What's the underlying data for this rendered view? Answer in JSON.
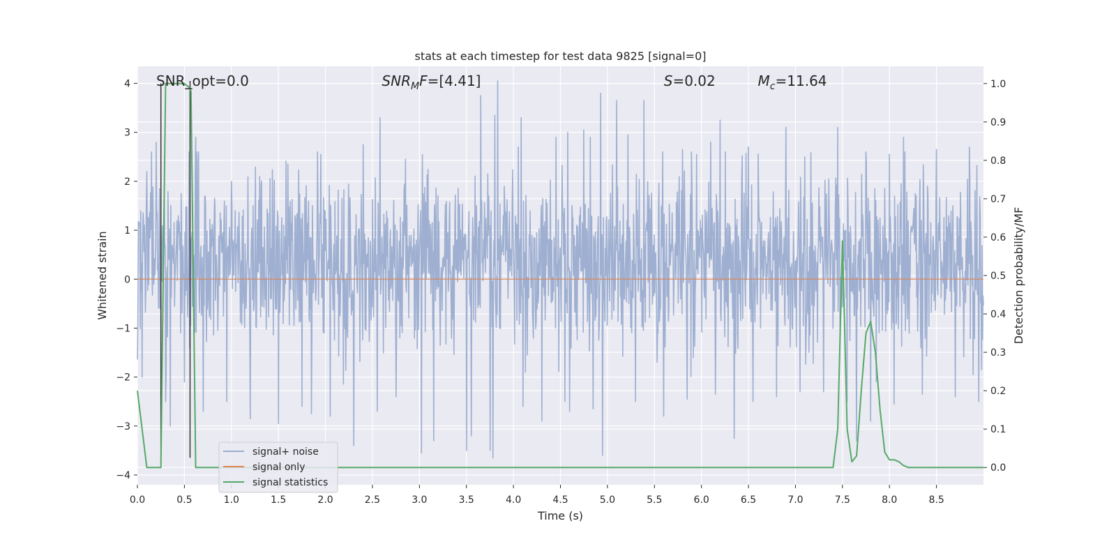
{
  "chart_data": {
    "type": "line",
    "title": "stats at each timestep for test data 9825 [signal=0]",
    "xlabel": "Time (s)",
    "ylabel_left": "Whitened strain",
    "ylabel_right": "Detection probability/MF",
    "xlim": [
      0.0,
      9.0
    ],
    "ylim_left": [
      -4.2,
      4.35
    ],
    "ylim_right": [
      -0.045,
      1.045
    ],
    "x_ticks": [
      0.0,
      0.5,
      1.0,
      1.5,
      2.0,
      2.5,
      3.0,
      3.5,
      4.0,
      4.5,
      5.0,
      5.5,
      6.0,
      6.5,
      7.0,
      7.5,
      8.0,
      8.5
    ],
    "x_tick_labels": [
      "0.0",
      "0.5",
      "1.0",
      "1.5",
      "2.0",
      "2.5",
      "3.0",
      "3.5",
      "4.0",
      "4.5",
      "5.0",
      "5.5",
      "6.0",
      "6.5",
      "7.0",
      "7.5",
      "8.0",
      "8.5"
    ],
    "y_left_ticks": [
      4,
      3,
      2,
      1,
      0,
      -1,
      -2,
      -3,
      -4
    ],
    "y_left_tick_labels": [
      "4",
      "3",
      "2",
      "1",
      "0",
      "−1",
      "−2",
      "−3",
      "−4"
    ],
    "y_right_ticks": [
      1.0,
      0.9,
      0.8,
      0.7,
      0.6,
      0.5,
      0.4,
      0.3,
      0.2,
      0.1,
      0.0
    ],
    "y_right_tick_labels": [
      "1.0",
      "0.9",
      "0.8",
      "0.7",
      "0.6",
      "0.5",
      "0.4",
      "0.3",
      "0.2",
      "0.1",
      "0.0"
    ],
    "grid": true,
    "legend": {
      "placement": "lower-left",
      "entries": [
        {
          "label": "signal+ noise",
          "color": "#9aaccf"
        },
        {
          "label": "signal only",
          "color": "#dd8452"
        },
        {
          "label": "signal statistics",
          "color": "#55a868"
        }
      ]
    },
    "annotations": [
      {
        "base": "SNR_opt=0.0",
        "sub": "",
        "suffix": "",
        "x": 0.2,
        "y": 4.05
      },
      {
        "base": "SNR",
        "sub": "M",
        "suffix": "F=[4.41]",
        "italic": true,
        "x": 2.6,
        "y": 4.05
      },
      {
        "base": "S",
        "sub": "",
        "suffix": "=0.02",
        "italic": true,
        "x": 5.6,
        "y": 4.05
      },
      {
        "base": "M",
        "sub": "c",
        "suffix": "=11.64",
        "italic": true,
        "x": 6.6,
        "y": 4.05
      }
    ],
    "series": [
      {
        "name": "signal+ noise",
        "axis": "left",
        "color": "#9aaccf",
        "style": "dense-noise",
        "t_start": 0.0,
        "t_end": 9.0,
        "samples": 1800,
        "typical_band": [
          -1.0,
          1.7
        ],
        "upper_peaks": [
          [
            0.05,
            2.4
          ],
          [
            0.1,
            2.2
          ],
          [
            0.15,
            2.6
          ],
          [
            0.2,
            2.8
          ],
          [
            0.3,
            2.5
          ],
          [
            0.62,
            2.9
          ],
          [
            0.7,
            3.35
          ],
          [
            1.0,
            2.0
          ],
          [
            1.3,
            2.1
          ],
          [
            1.6,
            2.35
          ],
          [
            1.95,
            2.55
          ],
          [
            2.4,
            2.75
          ],
          [
            2.58,
            3.3
          ],
          [
            2.85,
            2.45
          ],
          [
            3.5,
            2.55
          ],
          [
            3.65,
            3.75
          ],
          [
            3.8,
            3.35
          ],
          [
            3.83,
            4.05
          ],
          [
            4.05,
            2.7
          ],
          [
            4.08,
            3.3
          ],
          [
            4.45,
            2.9
          ],
          [
            4.58,
            3.0
          ],
          [
            4.75,
            3.05
          ],
          [
            4.82,
            2.9
          ],
          [
            4.93,
            3.8
          ],
          [
            5.1,
            3.65
          ],
          [
            5.22,
            2.95
          ],
          [
            5.39,
            3.65
          ],
          [
            5.6,
            2.8
          ],
          [
            5.8,
            2.65
          ],
          [
            5.95,
            2.55
          ],
          [
            6.1,
            2.8
          ],
          [
            6.2,
            3.25
          ],
          [
            6.5,
            2.7
          ],
          [
            6.9,
            3.1
          ],
          [
            7.1,
            2.5
          ],
          [
            7.3,
            2.6
          ],
          [
            7.45,
            3.1
          ],
          [
            7.75,
            2.6
          ],
          [
            8.0,
            2.55
          ],
          [
            8.15,
            2.9
          ],
          [
            8.5,
            2.65
          ],
          [
            8.85,
            2.7
          ]
        ],
        "lower_peaks": [
          [
            0.05,
            -2.0
          ],
          [
            0.3,
            -2.5
          ],
          [
            0.35,
            -3.0
          ],
          [
            0.5,
            -2.1
          ],
          [
            0.7,
            -2.7
          ],
          [
            0.95,
            -2.5
          ],
          [
            1.2,
            -2.85
          ],
          [
            1.5,
            -2.95
          ],
          [
            1.75,
            -2.6
          ],
          [
            1.85,
            -2.75
          ],
          [
            2.05,
            -2.8
          ],
          [
            2.3,
            -3.4
          ],
          [
            2.55,
            -2.7
          ],
          [
            2.75,
            -2.4
          ],
          [
            3.02,
            -3.55
          ],
          [
            3.15,
            -3.3
          ],
          [
            3.5,
            -3.5
          ],
          [
            3.55,
            -3.2
          ],
          [
            3.75,
            -3.5
          ],
          [
            3.78,
            -3.65
          ],
          [
            4.1,
            -2.6
          ],
          [
            4.3,
            -2.9
          ],
          [
            4.55,
            -2.5
          ],
          [
            4.6,
            -2.7
          ],
          [
            4.85,
            -2.65
          ],
          [
            4.95,
            -3.6
          ],
          [
            5.3,
            -2.5
          ],
          [
            5.6,
            -2.8
          ],
          [
            5.85,
            -2.45
          ],
          [
            6.15,
            -2.35
          ],
          [
            6.35,
            -3.25
          ],
          [
            6.55,
            -2.5
          ],
          [
            6.8,
            -2.4
          ],
          [
            7.05,
            -2.3
          ],
          [
            7.3,
            -2.3
          ],
          [
            7.55,
            -2.5
          ],
          [
            7.65,
            -3.3
          ],
          [
            7.8,
            -2.9
          ],
          [
            8.05,
            -2.55
          ],
          [
            8.35,
            -2.35
          ],
          [
            8.7,
            -2.4
          ],
          [
            8.95,
            -2.5
          ]
        ]
      },
      {
        "name": "signal only",
        "axis": "left",
        "color": "#dd8452",
        "x": [
          0.0,
          9.0
        ],
        "y": [
          0.0,
          0.0
        ]
      },
      {
        "name": "signal statistics",
        "axis": "right",
        "color": "#55a868",
        "x": [
          0.0,
          0.05,
          0.1,
          0.15,
          0.2,
          0.25,
          0.3,
          0.35,
          0.4,
          0.45,
          0.5,
          0.55,
          0.57,
          0.62,
          0.7,
          0.8,
          1.0,
          7.0,
          7.35,
          7.4,
          7.45,
          7.5,
          7.55,
          7.6,
          7.65,
          7.7,
          7.75,
          7.8,
          7.85,
          7.9,
          7.95,
          8.0,
          8.05,
          8.1,
          8.15,
          8.2,
          8.25,
          8.3,
          9.0
        ],
        "y": [
          0.2,
          0.1,
          0.0,
          0.0,
          0.0,
          0.0,
          1.0,
          1.0,
          1.0,
          1.0,
          1.0,
          0.99,
          0.98,
          0.0,
          0.0,
          0.0,
          0.0,
          0.0,
          0.0,
          0.0,
          0.1,
          0.59,
          0.1,
          0.015,
          0.03,
          0.2,
          0.35,
          0.38,
          0.3,
          0.15,
          0.04,
          0.02,
          0.02,
          0.015,
          0.005,
          0.0,
          0.0,
          0.0,
          0.0
        ]
      },
      {
        "name": "marker lines",
        "axis": "left",
        "color": "#333333",
        "style": "vlines",
        "x": [
          0.25,
          0.56
        ],
        "y": [
          [
            -3.65,
            4.0
          ],
          [
            -3.65,
            4.05
          ]
        ]
      }
    ]
  }
}
